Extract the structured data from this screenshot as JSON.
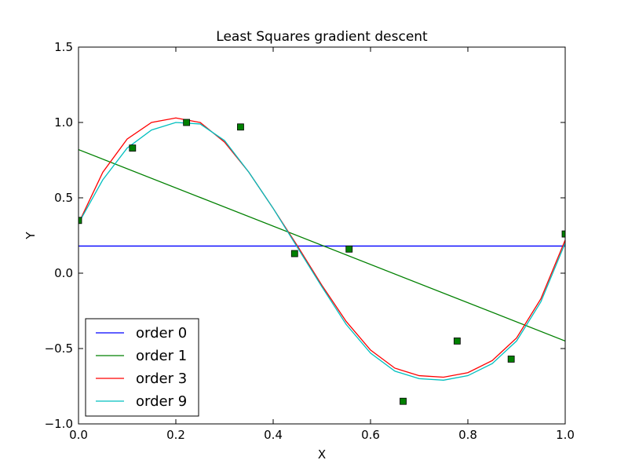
{
  "chart_data": {
    "type": "line",
    "title": "Least Squares gradient descent",
    "xlabel": "X",
    "ylabel": "Y",
    "xlim": [
      0.0,
      1.0
    ],
    "ylim": [
      -1.0,
      1.5
    ],
    "xticks": [
      "0.0",
      "0.2",
      "0.4",
      "0.6",
      "0.8",
      "1.0"
    ],
    "yticks": [
      "−1.0",
      "−0.5",
      "0.0",
      "0.5",
      "1.0",
      "1.5"
    ],
    "xtick_values": [
      0.0,
      0.2,
      0.4,
      0.6,
      0.8,
      1.0
    ],
    "ytick_values": [
      -1.0,
      -0.5,
      0.0,
      0.5,
      1.0,
      1.5
    ],
    "grid": false,
    "legend_position": "lower-left",
    "points": {
      "marker": "square",
      "color": "#008000",
      "x": [
        0.0,
        0.111,
        0.222,
        0.333,
        0.444,
        0.556,
        0.667,
        0.778,
        0.889,
        1.0
      ],
      "y": [
        0.35,
        0.83,
        1.0,
        0.97,
        0.13,
        0.16,
        -0.85,
        -0.45,
        -0.57,
        0.26
      ]
    },
    "series": [
      {
        "name": "order 0",
        "color": "#0000ff",
        "x": [
          0.0,
          1.0
        ],
        "y": [
          0.18,
          0.18
        ]
      },
      {
        "name": "order 1",
        "color": "#008000",
        "x": [
          0.0,
          1.0
        ],
        "y": [
          0.82,
          -0.45
        ]
      },
      {
        "name": "order 3",
        "color": "#ff0000",
        "x": [
          0.0,
          0.05,
          0.1,
          0.15,
          0.2,
          0.25,
          0.3,
          0.35,
          0.4,
          0.45,
          0.5,
          0.55,
          0.6,
          0.65,
          0.7,
          0.75,
          0.8,
          0.85,
          0.9,
          0.95,
          1.0
        ],
        "y": [
          0.33,
          0.67,
          0.89,
          1.0,
          1.03,
          1.0,
          0.87,
          0.67,
          0.43,
          0.18,
          -0.08,
          -0.32,
          -0.51,
          -0.63,
          -0.68,
          -0.69,
          -0.66,
          -0.58,
          -0.43,
          -0.17,
          0.22
        ]
      },
      {
        "name": "order 9",
        "color": "#00bfbf",
        "x": [
          0.0,
          0.05,
          0.1,
          0.15,
          0.2,
          0.25,
          0.3,
          0.35,
          0.4,
          0.45,
          0.5,
          0.55,
          0.6,
          0.65,
          0.7,
          0.75,
          0.8,
          0.85,
          0.9,
          0.95,
          1.0
        ],
        "y": [
          0.33,
          0.62,
          0.83,
          0.95,
          1.0,
          0.99,
          0.88,
          0.67,
          0.43,
          0.17,
          -0.09,
          -0.34,
          -0.53,
          -0.65,
          -0.7,
          -0.71,
          -0.68,
          -0.6,
          -0.45,
          -0.19,
          0.2
        ]
      }
    ]
  }
}
